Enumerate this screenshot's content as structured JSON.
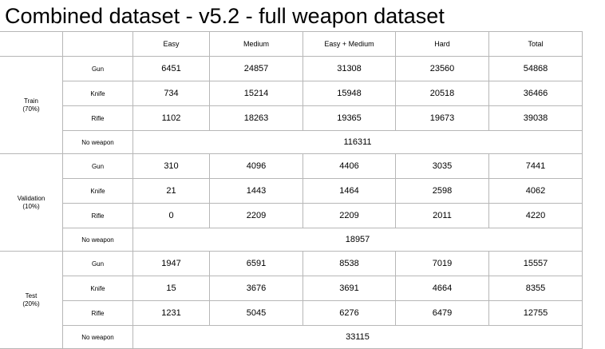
{
  "title": "Combined dataset - v5.2 - full weapon dataset",
  "columns": [
    "Easy",
    "Medium",
    "Easy + Medium",
    "Hard",
    "Total"
  ],
  "sections": [
    {
      "split": "Train",
      "percent": "(70%)",
      "rows": [
        {
          "category": "Gun",
          "values": [
            "6451",
            "24857",
            "31308",
            "23560",
            "54868"
          ]
        },
        {
          "category": "Knife",
          "values": [
            "734",
            "15214",
            "15948",
            "20518",
            "36466"
          ]
        },
        {
          "category": "Rifle",
          "values": [
            "1102",
            "18263",
            "19365",
            "19673",
            "39038"
          ]
        }
      ],
      "no_weapon": {
        "label": "No weapon",
        "value": "116311"
      }
    },
    {
      "split": "Validation",
      "percent": "(10%)",
      "rows": [
        {
          "category": "Gun",
          "values": [
            "310",
            "4096",
            "4406",
            "3035",
            "7441"
          ]
        },
        {
          "category": "Knife",
          "values": [
            "21",
            "1443",
            "1464",
            "2598",
            "4062"
          ]
        },
        {
          "category": "Rifle",
          "values": [
            "0",
            "2209",
            "2209",
            "2011",
            "4220"
          ]
        }
      ],
      "no_weapon": {
        "label": "No weapon",
        "value": "18957"
      }
    },
    {
      "split": "Test",
      "percent": "(20%)",
      "rows": [
        {
          "category": "Gun",
          "values": [
            "1947",
            "6591",
            "8538",
            "7019",
            "15557"
          ]
        },
        {
          "category": "Knife",
          "values": [
            "15",
            "3676",
            "3691",
            "4664",
            "8355"
          ]
        },
        {
          "category": "Rifle",
          "values": [
            "1231",
            "5045",
            "6276",
            "6479",
            "12755"
          ]
        }
      ],
      "no_weapon": {
        "label": "No weapon",
        "value": "33115"
      }
    }
  ]
}
